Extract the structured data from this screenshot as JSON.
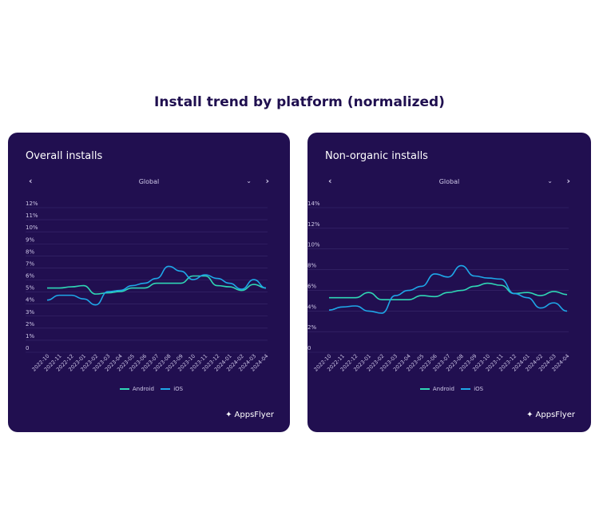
{
  "page_title": "Install trend by platform (normalized)",
  "colors": {
    "card_bg": "#210f50",
    "android": "#2fd6b5",
    "ios": "#1ea7e8"
  },
  "logo_text": "AppsFlyer",
  "chart_data": [
    {
      "type": "line",
      "title": "Overall installs",
      "region": "Global",
      "categories": [
        "2022-10",
        "2022-11",
        "2022-12",
        "2023-01",
        "2023-02",
        "2023-03",
        "2023-04",
        "2023-05",
        "2023-06",
        "2023-07",
        "2023-08",
        "2023-09",
        "2023-10",
        "2023-11",
        "2023-12",
        "2024-01",
        "2024-02",
        "2024-03",
        "2024-04"
      ],
      "y_ticks": [
        "0",
        "1%",
        "2%",
        "3%",
        "4%",
        "5%",
        "6%",
        "7%",
        "8%",
        "9%",
        "10%",
        "11%",
        "12%"
      ],
      "ylim": [
        0,
        12
      ],
      "grid": true,
      "legend": "bottom",
      "series": [
        {
          "name": "Android",
          "values": [
            5.0,
            5.0,
            5.1,
            5.2,
            4.5,
            4.6,
            4.7,
            5.0,
            5.0,
            5.4,
            5.4,
            5.4,
            6.0,
            6.0,
            5.2,
            5.1,
            4.8,
            5.3,
            5.0
          ]
        },
        {
          "name": "iOS",
          "values": [
            4.0,
            4.4,
            4.4,
            4.1,
            3.6,
            4.7,
            4.8,
            5.2,
            5.4,
            5.8,
            6.8,
            6.4,
            5.7,
            6.1,
            5.8,
            5.4,
            4.9,
            5.7,
            5.0
          ]
        }
      ]
    },
    {
      "type": "line",
      "title": "Non-organic installs",
      "region": "Global",
      "categories": [
        "2022-10",
        "2022-11",
        "2022-12",
        "2023-01",
        "2023-02",
        "2023-03",
        "2023-04",
        "2023-05",
        "2023-06",
        "2023-07",
        "2023-08",
        "2023-09",
        "2023-10",
        "2023-11",
        "2023-12",
        "2024-01",
        "2024-02",
        "2024-03",
        "2024-04"
      ],
      "y_ticks": [
        "0",
        "2%",
        "4%",
        "6%",
        "8%",
        "10%",
        "12%",
        "14%"
      ],
      "ylim": [
        0,
        14
      ],
      "grid": true,
      "legend": "bottom",
      "series": [
        {
          "name": "Android",
          "values": [
            4.9,
            4.9,
            4.9,
            5.4,
            4.7,
            4.7,
            4.7,
            5.1,
            5.0,
            5.4,
            5.6,
            6.0,
            6.3,
            6.1,
            5.3,
            5.4,
            5.1,
            5.5,
            5.2
          ]
        },
        {
          "name": "iOS",
          "values": [
            3.7,
            4.0,
            4.1,
            3.6,
            3.4,
            5.1,
            5.6,
            6.0,
            7.2,
            6.9,
            8.0,
            7.0,
            6.8,
            6.7,
            5.3,
            4.9,
            3.9,
            4.4,
            3.6
          ]
        }
      ]
    }
  ]
}
